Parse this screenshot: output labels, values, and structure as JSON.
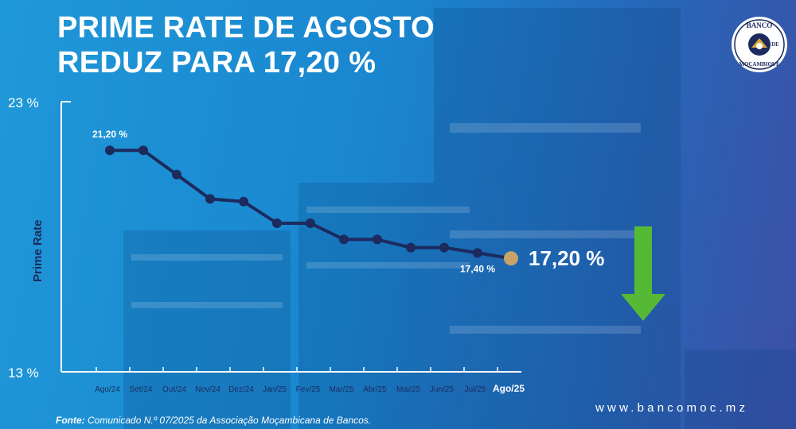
{
  "header": {
    "title_line1": "PRIME RATE DE AGOSTO",
    "title_line2": "REDUZ PARA 17,20 %"
  },
  "logo": {
    "text_top": "BANCO",
    "text_mid": "DE",
    "text_bottom": "MOÇAMBIQUE"
  },
  "chart_data": {
    "type": "line",
    "ylabel": "Prime Rate",
    "ylim": [
      13,
      23
    ],
    "y_tick_labels": [
      "23 %",
      "13 %"
    ],
    "categories": [
      "Ago/24",
      "Set/24",
      "Out/24",
      "Nov/24",
      "Dez/24",
      "Jan/25",
      "Fev/25",
      "Mar/25",
      "Abr/25",
      "Mai/25",
      "Jun/25",
      "Jul/25",
      "Ago/25"
    ],
    "values": [
      21.2,
      21.2,
      20.3,
      19.4,
      19.3,
      18.5,
      18.5,
      17.9,
      17.9,
      17.6,
      17.6,
      17.4,
      17.2
    ],
    "data_labels": [
      {
        "index": 0,
        "text": "21,20 %"
      },
      {
        "index": 11,
        "text": "17,40 %"
      }
    ],
    "highlight": {
      "index": 12,
      "text": "17,20 %"
    },
    "grid": false,
    "colors": {
      "line": "#1c2a5e",
      "highlight": "#c9a26a",
      "arrow": "#56b935"
    }
  },
  "footer": {
    "source_label": "Fonte:",
    "source_text": "Comunicado N.º 07/2025 da Associação Moçambicana de Bancos.",
    "website": "www.bancomoc.mz"
  }
}
